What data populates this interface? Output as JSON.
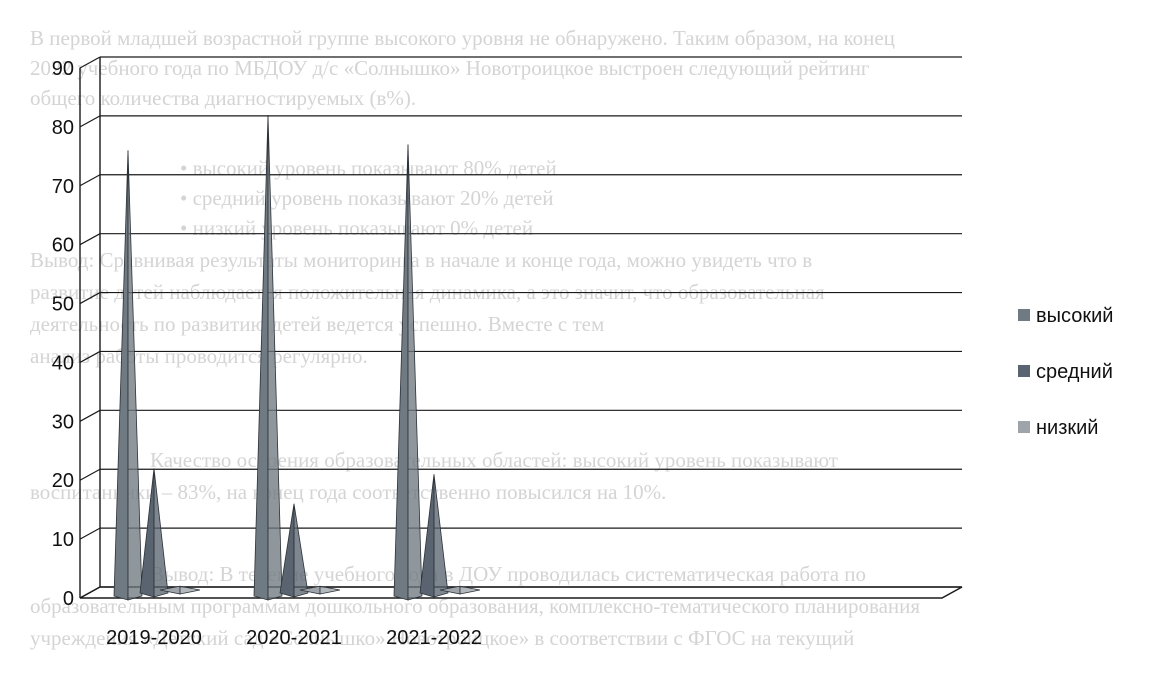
{
  "background_lines": [
    "В первой младшей возрастной группе высокого уровня не обнаружено. Таким образом, на конец",
    "2022 учебного года по МБДОУ д/с «Солнышко» Новотроицкое выстроен следующий рейтинг",
    "общего количества диагностируемых (в%).",
    "• высокий уровень показывают 80% детей",
    "• средний уровень показывают 20% детей",
    "• низкий уровень показывают 0% детей",
    "Вывод: Сравнивая результаты мониторинга в начале и конце года, можно увидеть что в",
    "развитие детей наблюдается положительная динамика, а это значит, что образовательная",
    "деятельность по развитию детей ведется успешно. Вместе с тем",
    "анализ работы проводится регулярно.",
    "Качество освоения образовательных областей: высокий уровень показывают",
    "воспитанники – 83%, на конец года соответственно повысился на 10%.",
    "Вывод: В течение учебного года в ДОУ проводилась систематическая работа по",
    "образовательным программам дошкольного образования, комплексно-тематического планирования",
    "учреждения «Детский сад «Солнышко» Новотроицкое» в соответствии с ФГОС на текущий"
  ],
  "chart_data": {
    "type": "bar",
    "style": "3d-cone",
    "categories": [
      "2019-2020",
      "2020-2021",
      "2021-2022"
    ],
    "series": [
      {
        "name": "высокий",
        "values": [
          76,
          82,
          77
        ],
        "color": "#707a82"
      },
      {
        "name": "средний",
        "values": [
          22,
          16,
          21
        ],
        "color": "#5a6470"
      },
      {
        "name": "низкий",
        "values": [
          2,
          2,
          2
        ],
        "color": "#9ea4aa"
      }
    ],
    "y_ticks": [
      "0",
      "10",
      "20",
      "30",
      "40",
      "50",
      "60",
      "70",
      "80",
      "90"
    ],
    "ylim": [
      0,
      90
    ],
    "grid": true,
    "legend_position": "right"
  }
}
